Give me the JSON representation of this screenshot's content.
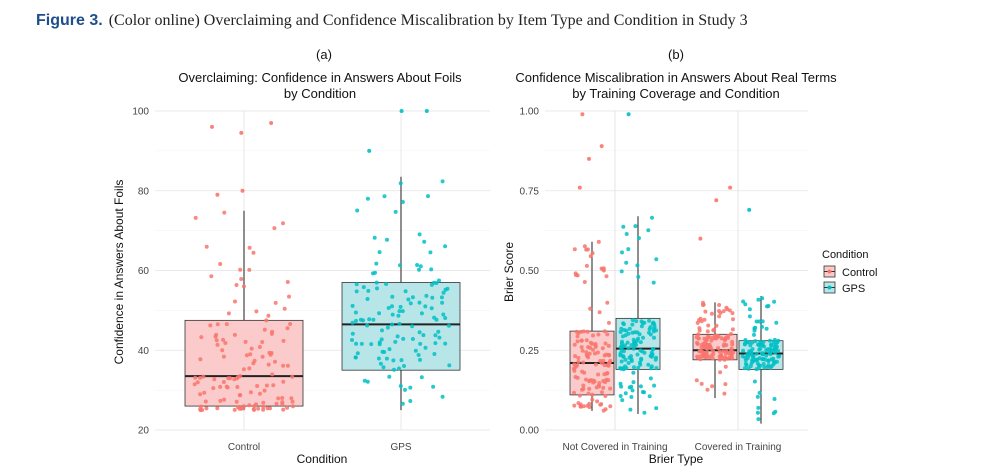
{
  "figure": {
    "label": "Figure 3.",
    "caption": "(Color online) Overclaiming and Confidence Miscalibration by Item Type and Condition in Study 3"
  },
  "colors": {
    "control": "#f8766d",
    "gps": "#00bfc4",
    "control_fill": "#fbcaca",
    "gps_fill": "#b8e6e8"
  },
  "legend": {
    "title": "Condition",
    "items": [
      "Control",
      "GPS"
    ]
  },
  "chart_data": [
    {
      "type": "box",
      "panel": "(a)",
      "title": [
        "Overclaiming: Confidence in Answers About Foils",
        "by Condition"
      ],
      "xlabel": "Condition",
      "ylabel": "Confidence in Answers About Foils",
      "categories": [
        "Control",
        "GPS"
      ],
      "ylim": [
        20,
        100
      ],
      "yticks": [
        20,
        40,
        60,
        80,
        100
      ],
      "boxes": [
        {
          "category": "Control",
          "group": "Control",
          "min": 25,
          "q1": 26,
          "median": 33.5,
          "q3": 47.5,
          "max": 75,
          "outliers": [
            79,
            80,
            97,
            96,
            94.5
          ]
        },
        {
          "category": "GPS",
          "group": "GPS",
          "min": 25,
          "q1": 35,
          "median": 46.5,
          "q3": 57,
          "max": 83.5,
          "outliers": [
            90,
            100,
            100
          ]
        }
      ]
    },
    {
      "type": "box",
      "panel": "(b)",
      "title": [
        "Confidence Miscalibration in Answers About Real Terms",
        "by Training Coverage and Condition"
      ],
      "xlabel": "Brier Type",
      "ylabel": "Brier Score",
      "categories": [
        "Not Covered in Training",
        "Covered in Training"
      ],
      "ylim": [
        0,
        1
      ],
      "yticks": [
        "0.00",
        "0.25",
        "0.50",
        "0.75",
        "1.00"
      ],
      "boxes": [
        {
          "category": "Not Covered in Training",
          "group": "Control",
          "min": 0.06,
          "q1": 0.11,
          "median": 0.21,
          "q3": 0.31,
          "max": 0.59,
          "outliers": [
            0.76,
            0.85,
            0.89,
            0.99
          ]
        },
        {
          "category": "Not Covered in Training",
          "group": "GPS",
          "min": 0.05,
          "q1": 0.19,
          "median": 0.255,
          "q3": 0.35,
          "max": 0.67,
          "outliers": [
            0.99
          ]
        },
        {
          "category": "Covered in Training",
          "group": "Control",
          "min": 0.1,
          "q1": 0.22,
          "median": 0.25,
          "q3": 0.3,
          "max": 0.4,
          "outliers": [
            0.6,
            0.72,
            0.76
          ]
        },
        {
          "category": "Covered in Training",
          "group": "GPS",
          "min": 0.02,
          "q1": 0.19,
          "median": 0.24,
          "q3": 0.28,
          "max": 0.42,
          "outliers": [
            0.69
          ]
        }
      ]
    }
  ]
}
